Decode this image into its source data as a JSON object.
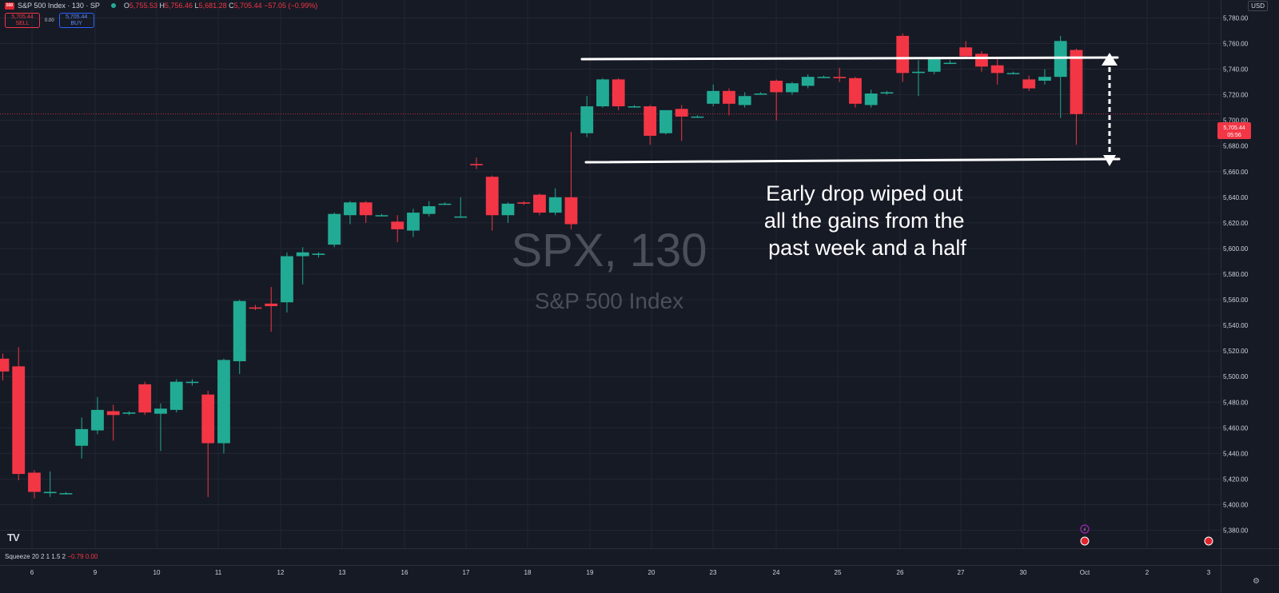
{
  "header": {
    "symbol_badge": "500",
    "title": "S&P 500 Index · 130 · SP",
    "ohlc": [
      {
        "k": "O",
        "v": "5,755.53"
      },
      {
        "k": "H",
        "v": "5,756.46"
      },
      {
        "k": "L",
        "v": "5,681.28"
      },
      {
        "k": "C",
        "v": "5,705.44"
      },
      {
        "k": "",
        "v": "−57.05 (−0.99%)"
      }
    ],
    "currency": "USD"
  },
  "trade": {
    "sell_price": "5,705.44",
    "sell_label": "SELL",
    "spread": "0.00",
    "buy_price": "5,705.44",
    "buy_label": "BUY"
  },
  "indicator": {
    "name": "Squeeze",
    "params": "20 2 1 1.5 2",
    "value1": "−0.79",
    "value2": "0.00"
  },
  "last_price_tag": {
    "price": "5,705.44",
    "countdown": "05:56"
  },
  "annotation": {
    "lines": [
      "Early drop wiped out",
      "all the gains from the",
      "past week and a half"
    ]
  },
  "colors": {
    "background": "#161a25",
    "up": "#22ab94",
    "down": "#f23645",
    "grid": "#232733",
    "axis_text": "#d1d4dc",
    "watermark": "#4b4f5a",
    "annotation": "#ffffff"
  },
  "chart_data": {
    "type": "candlestick",
    "watermark": {
      "symbol": "SPX, 130",
      "name": "S&P 500 Index"
    },
    "ylim": [
      5366,
      5794
    ],
    "y_ticks": [
      5380,
      5400,
      5420,
      5440,
      5460,
      5480,
      5500,
      5520,
      5540,
      5560,
      5580,
      5600,
      5620,
      5640,
      5660,
      5680,
      5700,
      5720,
      5740,
      5760,
      5780
    ],
    "x_ticks": [
      "6",
      "9",
      "10",
      "11",
      "12",
      "13",
      "16",
      "17",
      "18",
      "19",
      "20",
      "23",
      "24",
      "25",
      "26",
      "27",
      "30",
      "Oct",
      "2",
      "3"
    ],
    "bars_per_day": 4,
    "candles": [
      {
        "o": 5514,
        "h": 5518,
        "l": 5497,
        "c": 5504
      },
      {
        "o": 5508,
        "h": 5523,
        "l": 5419,
        "c": 5424
      },
      {
        "o": 5425,
        "h": 5427,
        "l": 5405,
        "c": 5410
      },
      {
        "o": 5409,
        "h": 5426,
        "l": 5406,
        "c": 5410
      },
      {
        "o": 5409,
        "h": 5410,
        "l": 5408,
        "c": 5409
      },
      {
        "o": 5446,
        "h": 5468,
        "l": 5436,
        "c": 5459
      },
      {
        "o": 5458,
        "h": 5484,
        "l": 5455,
        "c": 5474
      },
      {
        "o": 5473,
        "h": 5478,
        "l": 5450,
        "c": 5470
      },
      {
        "o": 5471,
        "h": 5473,
        "l": 5470,
        "c": 5472
      },
      {
        "o": 5494,
        "h": 5496,
        "l": 5470,
        "c": 5472
      },
      {
        "o": 5471,
        "h": 5479,
        "l": 5442,
        "c": 5475
      },
      {
        "o": 5474,
        "h": 5498,
        "l": 5472,
        "c": 5496
      },
      {
        "o": 5495,
        "h": 5498,
        "l": 5493,
        "c": 5496
      },
      {
        "o": 5486,
        "h": 5489,
        "l": 5406,
        "c": 5448
      },
      {
        "o": 5448,
        "h": 5514,
        "l": 5440,
        "c": 5513
      },
      {
        "o": 5512,
        "h": 5560,
        "l": 5502,
        "c": 5559
      },
      {
        "o": 5554,
        "h": 5556,
        "l": 5552,
        "c": 5553
      },
      {
        "o": 5557,
        "h": 5570,
        "l": 5535,
        "c": 5555
      },
      {
        "o": 5558,
        "h": 5597,
        "l": 5550,
        "c": 5594
      },
      {
        "o": 5594,
        "h": 5601,
        "l": 5572,
        "c": 5597
      },
      {
        "o": 5595,
        "h": 5597,
        "l": 5593,
        "c": 5596
      },
      {
        "o": 5603,
        "h": 5628,
        "l": 5601,
        "c": 5627
      },
      {
        "o": 5626,
        "h": 5637,
        "l": 5619,
        "c": 5636
      },
      {
        "o": 5636,
        "h": 5637,
        "l": 5620,
        "c": 5626
      },
      {
        "o": 5626,
        "h": 5627,
        "l": 5625,
        "c": 5626
      },
      {
        "o": 5621,
        "h": 5626,
        "l": 5605,
        "c": 5615
      },
      {
        "o": 5614,
        "h": 5631,
        "l": 5609,
        "c": 5628
      },
      {
        "o": 5627,
        "h": 5637,
        "l": 5625,
        "c": 5633
      },
      {
        "o": 5635,
        "h": 5636,
        "l": 5634,
        "c": 5635
      },
      {
        "o": 5625,
        "h": 5640,
        "l": 5624,
        "c": 5625
      },
      {
        "o": 5666,
        "h": 5671,
        "l": 5662,
        "c": 5665
      },
      {
        "o": 5656,
        "h": 5657,
        "l": 5614,
        "c": 5626
      },
      {
        "o": 5626,
        "h": 5636,
        "l": 5620,
        "c": 5635
      },
      {
        "o": 5636,
        "h": 5637,
        "l": 5634,
        "c": 5635
      },
      {
        "o": 5642,
        "h": 5643,
        "l": 5626,
        "c": 5628
      },
      {
        "o": 5628,
        "h": 5647,
        "l": 5626,
        "c": 5640
      },
      {
        "o": 5640,
        "h": 5691,
        "l": 5615,
        "c": 5619
      },
      {
        "o": 5690,
        "h": 5719,
        "l": 5687,
        "c": 5711
      },
      {
        "o": 5711,
        "h": 5733,
        "l": 5710,
        "c": 5732
      },
      {
        "o": 5732,
        "h": 5733,
        "l": 5708,
        "c": 5711
      },
      {
        "o": 5711,
        "h": 5712,
        "l": 5710,
        "c": 5711
      },
      {
        "o": 5711,
        "h": 5712,
        "l": 5681,
        "c": 5688
      },
      {
        "o": 5690,
        "h": 5708,
        "l": 5689,
        "c": 5708
      },
      {
        "o": 5709,
        "h": 5712,
        "l": 5684,
        "c": 5703
      },
      {
        "o": 5703,
        "h": 5704,
        "l": 5702,
        "c": 5703
      },
      {
        "o": 5713,
        "h": 5728,
        "l": 5711,
        "c": 5723
      },
      {
        "o": 5723,
        "h": 5725,
        "l": 5704,
        "c": 5713
      },
      {
        "o": 5712,
        "h": 5722,
        "l": 5710,
        "c": 5719
      },
      {
        "o": 5721,
        "h": 5722,
        "l": 5720,
        "c": 5721
      },
      {
        "o": 5731,
        "h": 5732,
        "l": 5700,
        "c": 5722
      },
      {
        "o": 5722,
        "h": 5730,
        "l": 5720,
        "c": 5729
      },
      {
        "o": 5727,
        "h": 5736,
        "l": 5725,
        "c": 5734
      },
      {
        "o": 5734,
        "h": 5735,
        "l": 5733,
        "c": 5734
      },
      {
        "o": 5734,
        "h": 5741,
        "l": 5730,
        "c": 5733
      },
      {
        "o": 5733,
        "h": 5734,
        "l": 5710,
        "c": 5713
      },
      {
        "o": 5712,
        "h": 5724,
        "l": 5710,
        "c": 5721
      },
      {
        "o": 5721,
        "h": 5723,
        "l": 5720,
        "c": 5722
      },
      {
        "o": 5766,
        "h": 5768,
        "l": 5730,
        "c": 5737
      },
      {
        "o": 5737,
        "h": 5747,
        "l": 5719,
        "c": 5738
      },
      {
        "o": 5738,
        "h": 5748,
        "l": 5736,
        "c": 5748
      },
      {
        "o": 5745,
        "h": 5747,
        "l": 5744,
        "c": 5745
      },
      {
        "o": 5757,
        "h": 5762,
        "l": 5748,
        "c": 5750
      },
      {
        "o": 5752,
        "h": 5754,
        "l": 5738,
        "c": 5742
      },
      {
        "o": 5743,
        "h": 5748,
        "l": 5728,
        "c": 5737
      },
      {
        "o": 5737,
        "h": 5738,
        "l": 5736,
        "c": 5737
      },
      {
        "o": 5732,
        "h": 5735,
        "l": 5723,
        "c": 5725
      },
      {
        "o": 5731,
        "h": 5740,
        "l": 5728,
        "c": 5734
      },
      {
        "o": 5734,
        "h": 5766,
        "l": 5702,
        "c": 5762
      },
      {
        "o": 5755,
        "h": 5756,
        "l": 5681,
        "c": 5705
      }
    ]
  }
}
